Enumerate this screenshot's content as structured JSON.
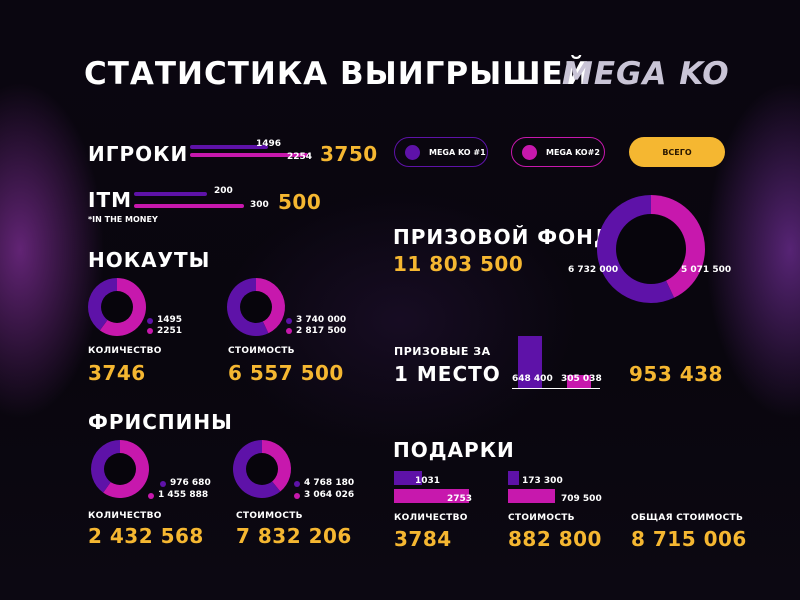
{
  "title": "СТАТИСТИКА ВЫИГРЫШЕЙ",
  "logo_text": "MEGA KO",
  "colors": {
    "series1": "#5e12a8",
    "series2": "#c718ad",
    "accent": "#f5b731",
    "hole": "#07050c"
  },
  "legend": {
    "series1": "MEGA KO #1",
    "series2": "MEGA KO#2",
    "total_button": "ВСЕГО"
  },
  "players": {
    "label": "ИГРОКИ",
    "s1": "1496",
    "s2": "2254",
    "total": "3750"
  },
  "itm": {
    "label": "ITM",
    "note": "*IN THE MONEY",
    "s1": "200",
    "s2": "300",
    "total": "500"
  },
  "knockouts": {
    "label": "НОКАУТЫ",
    "count": {
      "label": "КОЛИЧЕСТВО",
      "s1": "1495",
      "s2": "2251",
      "total": "3746"
    },
    "cost": {
      "label": "СТОИМОСТЬ",
      "s1": "3 740 000",
      "s2": "2 817 500",
      "total": "6 557 500"
    }
  },
  "freespins": {
    "label": "ФРИСПИНЫ",
    "count": {
      "label": "КОЛИЧЕСТВО",
      "s1": "976 680",
      "s2": "1 455 888",
      "total": "2 432 568"
    },
    "cost": {
      "label": "СТОИМОСТЬ",
      "s1": "4 768 180",
      "s2": "3 064 026",
      "total": "7 832 206"
    }
  },
  "prize_fund": {
    "label": "ПРИЗОВОЙ ФОНД",
    "total": "11 803 500",
    "s1": "6 732 000",
    "s2": "5 071 500"
  },
  "first_place": {
    "label_line1": "ПРИЗОВЫЕ ЗА",
    "label_line2": "1 МЕСТО",
    "s1": "648 400",
    "s2": "305 038",
    "total": "953 438"
  },
  "gifts": {
    "label": "ПОДАРКИ",
    "count": {
      "label": "КОЛИЧЕСТВО",
      "s1": "1031",
      "s2": "2753",
      "total": "3784"
    },
    "cost": {
      "label": "СТОИМОСТЬ",
      "s1": "173 300",
      "s2": "709 500",
      "total": "882 800"
    },
    "overall": {
      "label": "ОБЩАЯ СТОИМОСТЬ",
      "total": "8 715 006"
    }
  },
  "chart_data": [
    {
      "type": "bar",
      "title": "ИГРОКИ",
      "categories": [
        "MEGA KO #1",
        "MEGA KO#2"
      ],
      "values": [
        1496,
        2254
      ],
      "total": 3750
    },
    {
      "type": "bar",
      "title": "ITM",
      "categories": [
        "MEGA KO #1",
        "MEGA KO#2"
      ],
      "values": [
        200,
        300
      ],
      "total": 500
    },
    {
      "type": "pie",
      "title": "НОКАУТЫ — КОЛИЧЕСТВО",
      "categories": [
        "MEGA KO #1",
        "MEGA KO#2"
      ],
      "values": [
        1495,
        2251
      ],
      "total": 3746
    },
    {
      "type": "pie",
      "title": "НОКАУТЫ — СТОИМОСТЬ",
      "categories": [
        "MEGA KO #1",
        "MEGA KO#2"
      ],
      "values": [
        3740000,
        2817500
      ],
      "total": 6557500
    },
    {
      "type": "pie",
      "title": "ФРИСПИНЫ — КОЛИЧЕСТВО",
      "categories": [
        "MEGA KO #1",
        "MEGA KO#2"
      ],
      "values": [
        976680,
        1455888
      ],
      "total": 2432568
    },
    {
      "type": "pie",
      "title": "ФРИСПИНЫ — СТОИМОСТЬ",
      "categories": [
        "MEGA KO #1",
        "MEGA KO#2"
      ],
      "values": [
        4768180,
        3064026
      ],
      "total": 7832206
    },
    {
      "type": "pie",
      "title": "ПРИЗОВОЙ ФОНД",
      "categories": [
        "MEGA KO #1",
        "MEGA KO#2"
      ],
      "values": [
        6732000,
        5071500
      ],
      "total": 11803500
    },
    {
      "type": "bar",
      "title": "ПРИЗОВЫЕ ЗА 1 МЕСТО",
      "categories": [
        "MEGA KO #1",
        "MEGA KO#2"
      ],
      "values": [
        648400,
        305038
      ],
      "total": 953438
    },
    {
      "type": "bar",
      "title": "ПОДАРКИ — КОЛИЧЕСТВО",
      "categories": [
        "MEGA KO #1",
        "MEGA KO#2"
      ],
      "values": [
        1031,
        2753
      ],
      "total": 3784
    },
    {
      "type": "bar",
      "title": "ПОДАРКИ — СТОИМОСТЬ",
      "categories": [
        "MEGA KO #1",
        "MEGA KO#2"
      ],
      "values": [
        173300,
        709500
      ],
      "total": 882800
    }
  ]
}
